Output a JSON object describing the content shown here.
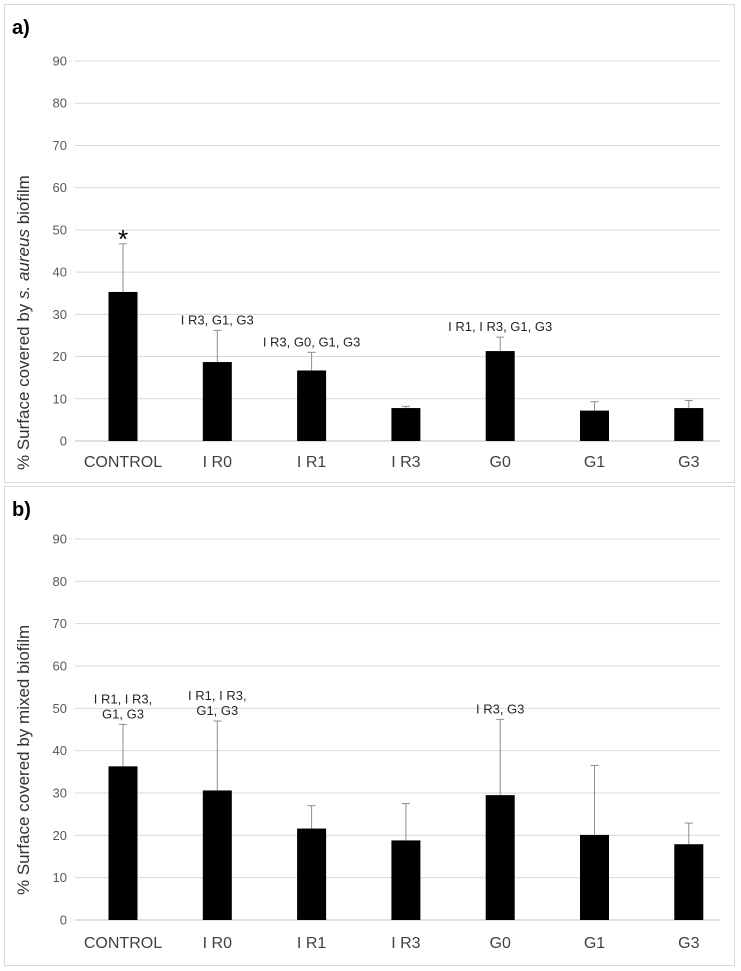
{
  "chart_data": [
    {
      "type": "bar",
      "panel_label": "a)",
      "ylabel_prefix": "% Surface covered by ",
      "ylabel_italic": "s. aureus",
      "ylabel_suffix": " biofilm",
      "ylim": [
        0,
        90
      ],
      "yticks": [
        "0",
        "10",
        "20",
        "30",
        "40",
        "50",
        "60",
        "70",
        "80",
        "90"
      ],
      "categories": [
        "CONTROL",
        "I R0",
        "I R1",
        "I R3",
        "G0",
        "G1",
        "G3"
      ],
      "values": [
        35.3,
        18.7,
        16.7,
        7.8,
        21.3,
        7.2,
        7.8
      ],
      "errors": [
        11.4,
        7.5,
        4.3,
        0.4,
        3.3,
        2.1,
        1.8
      ],
      "annotations": [
        "*",
        "I R3, G1, G3",
        "I R3, G0, G1, G3",
        "",
        "I R1, I R3, G1, G3",
        "",
        ""
      ]
    },
    {
      "type": "bar",
      "panel_label": "b)",
      "ylabel_prefix": "% Surface covered by mixed biofilm",
      "ylabel_italic": "",
      "ylabel_suffix": "",
      "ylim": [
        0,
        90
      ],
      "yticks": [
        "0",
        "10",
        "20",
        "30",
        "40",
        "50",
        "60",
        "70",
        "80",
        "90"
      ],
      "categories": [
        "CONTROL",
        "I R0",
        "I R1",
        "I R3",
        "G0",
        "G1",
        "G3"
      ],
      "values": [
        36.3,
        30.6,
        21.6,
        18.8,
        29.5,
        20.1,
        17.9
      ],
      "errors": [
        9.9,
        16.4,
        5.4,
        8.7,
        17.9,
        16.4,
        5.0
      ],
      "annotations": [
        [
          "I R1, I R3,",
          "G1, G3"
        ],
        [
          "I R1, I R3,",
          "G1, G3"
        ],
        [],
        [],
        [
          "I R3, G3"
        ],
        [],
        []
      ]
    }
  ]
}
